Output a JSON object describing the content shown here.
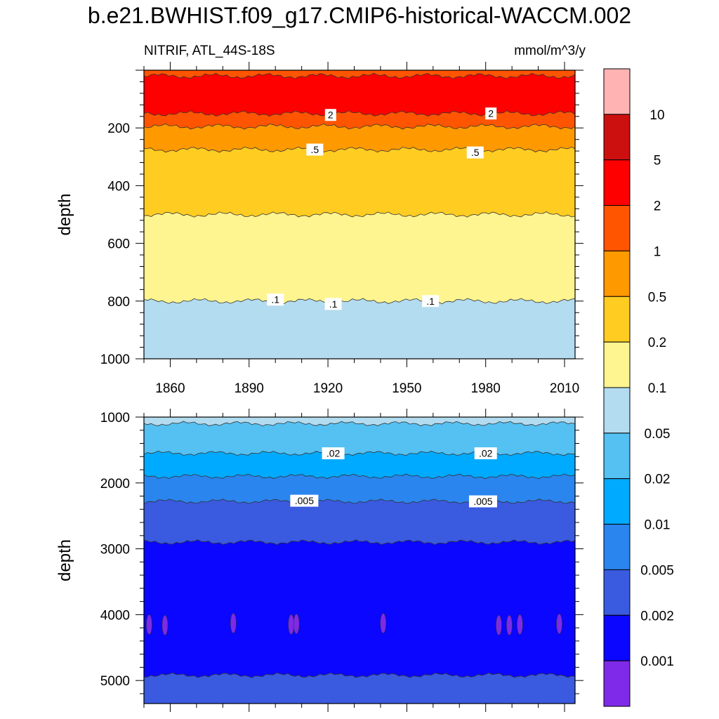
{
  "header": {
    "title": "b.e21.BWHIST.f09_g17.CMIP6-historical-WACCM.002",
    "left_label": "NITRIF, ATL_44S-18S",
    "right_label": "mmol/m^3/y"
  },
  "chart_data": [
    {
      "type": "contour",
      "panel": "top",
      "ylabel": "depth",
      "xlabel": "",
      "xlim": [
        1850,
        2014
      ],
      "ylim": [
        1000,
        0
      ],
      "x_ticks": [
        1860,
        1890,
        1920,
        1950,
        1980,
        2010
      ],
      "y_ticks": [
        200,
        400,
        600,
        800,
        1000
      ],
      "bands": [
        {
          "from": 0,
          "to": 20,
          "color": "#ff5500"
        },
        {
          "from": 20,
          "to": 150,
          "color": "#ff0000"
        },
        {
          "from": 150,
          "to": 195,
          "color": "#ff5500"
        },
        {
          "from": 195,
          "to": 275,
          "color": "#ff9900"
        },
        {
          "from": 275,
          "to": 500,
          "color": "#ffcc22"
        },
        {
          "from": 500,
          "to": 800,
          "color": "#fff590"
        },
        {
          "from": 800,
          "to": 1000,
          "color": "#b3dcf0"
        }
      ],
      "contour_labels": [
        {
          "text": "2",
          "x": 1921,
          "depth": 155
        },
        {
          "text": "2",
          "x": 1982,
          "depth": 150
        },
        {
          "text": ".5",
          "x": 1915,
          "depth": 275
        },
        {
          "text": ".5",
          "x": 1976,
          "depth": 285
        },
        {
          "text": ".1",
          "x": 1900,
          "depth": 795
        },
        {
          "text": ".1",
          "x": 1922,
          "depth": 810
        },
        {
          "text": ".1",
          "x": 1959,
          "depth": 800
        }
      ]
    },
    {
      "type": "contour",
      "panel": "bottom",
      "ylabel": "depth",
      "xlabel": "",
      "xlim": [
        1850,
        2014
      ],
      "ylim": [
        5350,
        1000
      ],
      "x_ticks": [
        1860,
        1890,
        1920,
        1950,
        1980,
        2010
      ],
      "y_ticks": [
        1000,
        2000,
        3000,
        4000,
        5000
      ],
      "bands": [
        {
          "from": 1000,
          "to": 1100,
          "color": "#b3dcf0"
        },
        {
          "from": 1100,
          "to": 1550,
          "color": "#55c0f2"
        },
        {
          "from": 1550,
          "to": 1900,
          "color": "#00aaff"
        },
        {
          "from": 1900,
          "to": 2280,
          "color": "#2a85ee"
        },
        {
          "from": 2280,
          "to": 2900,
          "color": "#3a5ae0"
        },
        {
          "from": 2900,
          "to": 4920,
          "color": "#0a06ff"
        },
        {
          "from": 4920,
          "to": 5350,
          "color": "#3a5ae0"
        }
      ],
      "contour_labels": [
        {
          "text": ".02",
          "x": 1922,
          "depth": 1550
        },
        {
          "text": ".02",
          "x": 1980,
          "depth": 1550
        },
        {
          "text": ".005",
          "x": 1911,
          "depth": 2270
        },
        {
          "text": ".005",
          "x": 1979,
          "depth": 2280
        }
      ],
      "spots": [
        {
          "x": 1852,
          "depth": 4150
        },
        {
          "x": 1858,
          "depth": 4160
        },
        {
          "x": 1884,
          "depth": 4130
        },
        {
          "x": 1906,
          "depth": 4150
        },
        {
          "x": 1908,
          "depth": 4140
        },
        {
          "x": 1941,
          "depth": 4130
        },
        {
          "x": 1985,
          "depth": 4160
        },
        {
          "x": 1989,
          "depth": 4160
        },
        {
          "x": 1993,
          "depth": 4150
        },
        {
          "x": 2008,
          "depth": 4140
        }
      ]
    }
  ],
  "colorbar": {
    "colors": [
      "#ffb3b3",
      "#cc1010",
      "#ff0000",
      "#ff5500",
      "#ff9900",
      "#ffcc22",
      "#fff590",
      "#b3dcf0",
      "#55c0f2",
      "#00aaff",
      "#2a85ee",
      "#3a5ae0",
      "#0a06ff",
      "#7f2ae8"
    ],
    "labels": [
      "10",
      "5",
      "2",
      "1",
      "0.5",
      "0.2",
      "0.1",
      "0.05",
      "0.02",
      "0.01",
      "0.005",
      "0.002",
      "0.001"
    ]
  }
}
